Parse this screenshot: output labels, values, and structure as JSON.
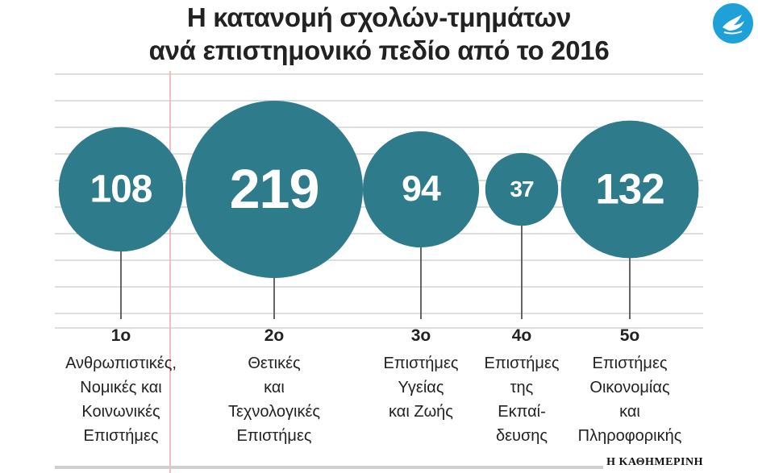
{
  "title_lines": [
    "Η κατανομή σχολών-τμημάτων",
    "ανά επιστημονικό πεδίο από το 2016"
  ],
  "source": "Η ΚΑΘΗΜΕΡΙΝΗ",
  "logo_icon": "dove-icon",
  "colors": {
    "bubble": "#2e7b8b",
    "gridline": "#dedede",
    "margin_line": "#f2aaaa",
    "stem": "#555555",
    "logo": "#1ea0d8"
  },
  "chart_data": {
    "type": "bubble",
    "title": "Η κατανομή σχολών-τμημάτων ανά επιστημονικό πεδίο από το 2016",
    "grid": true,
    "categories": [
      {
        "rank": "1ο",
        "label_lines": [
          "Ανθρωπιστικές,",
          "Νομικές και",
          "Κοινωνικές",
          "Επιστήμες"
        ],
        "value": 108
      },
      {
        "rank": "2ο",
        "label_lines": [
          "Θετικές",
          "και",
          "Τεχνολογικές",
          "Επιστήμες"
        ],
        "value": 219
      },
      {
        "rank": "3ο",
        "label_lines": [
          "Επιστήμες",
          "Υγείας",
          "και Ζωής"
        ],
        "value": 94
      },
      {
        "rank": "4ο",
        "label_lines": [
          "Επιστήμες",
          "της",
          "Εκπαί-",
          "δευσης"
        ],
        "value": 37
      },
      {
        "rank": "5ο",
        "label_lines": [
          "Επιστήμες",
          "Οικονομίας",
          "και",
          "Πληροφορικής"
        ],
        "value": 132
      }
    ]
  }
}
